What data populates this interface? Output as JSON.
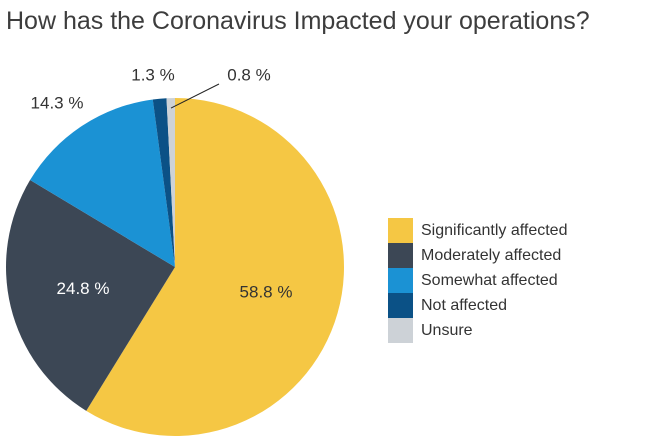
{
  "chart_data": {
    "type": "pie",
    "title": "How has the Coronavirus Impacted your operations?",
    "start_angle_deg": 0,
    "direction": "clockwise",
    "legend_position": "right",
    "slices": [
      {
        "name": "Significantly affected",
        "value": 58.8,
        "label": "58.8 %",
        "color": "#F5C744",
        "label_placement": "inside",
        "label_color": "#333333"
      },
      {
        "name": "Moderately affected",
        "value": 24.8,
        "label": "24.8 %",
        "color": "#3C4755",
        "label_placement": "inside",
        "label_color": "#ffffff"
      },
      {
        "name": "Somewhat affected",
        "value": 14.3,
        "label": "14.3 %",
        "color": "#1B92D4",
        "label_placement": "outside",
        "label_color": "#333333"
      },
      {
        "name": "Not affected",
        "value": 1.3,
        "label": "1.3 %",
        "color": "#0B5186",
        "label_placement": "outside",
        "label_color": "#333333"
      },
      {
        "name": "Unsure",
        "value": 0.8,
        "label": "0.8 %",
        "color": "#CDD2D7",
        "label_placement": "outside",
        "label_color": "#333333"
      }
    ]
  }
}
